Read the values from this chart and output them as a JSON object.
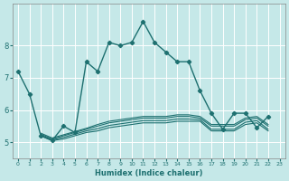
{
  "xlabel": "Humidex (Indice chaleur)",
  "background_color": "#c5e8e8",
  "grid_color": "#ffffff",
  "line_color": "#1e7070",
  "xlim": [
    -0.5,
    23.5
  ],
  "ylim": [
    4.5,
    9.3
  ],
  "yticks": [
    5,
    6,
    7,
    8
  ],
  "xticks": [
    0,
    1,
    2,
    3,
    4,
    5,
    6,
    7,
    8,
    9,
    10,
    11,
    12,
    13,
    14,
    15,
    16,
    17,
    18,
    19,
    20,
    21,
    22,
    23
  ],
  "main_x": [
    0,
    1,
    2,
    3,
    4,
    5,
    6,
    7,
    8,
    9,
    10,
    11,
    12,
    13,
    14,
    15,
    16,
    17,
    18,
    19,
    20,
    21,
    22
  ],
  "main_y": [
    7.2,
    6.5,
    5.2,
    5.05,
    5.5,
    5.3,
    7.5,
    7.2,
    8.1,
    8.0,
    8.1,
    8.75,
    8.1,
    7.8,
    7.5,
    7.5,
    6.6,
    5.9,
    5.4,
    5.9,
    5.9,
    5.45,
    5.8
  ],
  "flat_lines": [
    {
      "x": [
        2,
        3,
        4,
        5,
        6,
        7,
        8,
        9,
        10,
        11,
        12,
        13,
        14,
        15,
        16,
        17,
        18,
        19,
        20,
        21,
        22
      ],
      "y": [
        5.2,
        5.05,
        5.1,
        5.2,
        5.3,
        5.35,
        5.45,
        5.5,
        5.55,
        5.6,
        5.6,
        5.6,
        5.65,
        5.65,
        5.65,
        5.35,
        5.35,
        5.35,
        5.55,
        5.6,
        5.35
      ]
    },
    {
      "x": [
        2,
        3,
        4,
        5,
        6,
        7,
        8,
        9,
        10,
        11,
        12,
        13,
        14,
        15,
        16,
        17,
        18,
        19,
        20,
        21,
        22
      ],
      "y": [
        5.22,
        5.07,
        5.15,
        5.25,
        5.35,
        5.42,
        5.52,
        5.57,
        5.62,
        5.67,
        5.67,
        5.67,
        5.72,
        5.72,
        5.7,
        5.4,
        5.4,
        5.4,
        5.62,
        5.67,
        5.4
      ]
    },
    {
      "x": [
        2,
        3,
        4,
        5,
        6,
        7,
        8,
        9,
        10,
        11,
        12,
        13,
        14,
        15,
        16,
        17,
        18,
        19,
        20,
        21,
        22
      ],
      "y": [
        5.25,
        5.1,
        5.2,
        5.3,
        5.4,
        5.5,
        5.6,
        5.65,
        5.7,
        5.75,
        5.75,
        5.75,
        5.8,
        5.8,
        5.75,
        5.5,
        5.5,
        5.5,
        5.7,
        5.75,
        5.5
      ]
    },
    {
      "x": [
        2,
        3,
        4,
        5,
        6,
        7,
        8,
        9,
        10,
        11,
        12,
        13,
        14,
        15,
        16,
        17,
        18,
        19,
        20,
        21,
        22
      ],
      "y": [
        5.28,
        5.13,
        5.23,
        5.33,
        5.43,
        5.55,
        5.65,
        5.7,
        5.75,
        5.8,
        5.8,
        5.8,
        5.85,
        5.85,
        5.8,
        5.55,
        5.55,
        5.55,
        5.75,
        5.8,
        5.55
      ]
    }
  ]
}
